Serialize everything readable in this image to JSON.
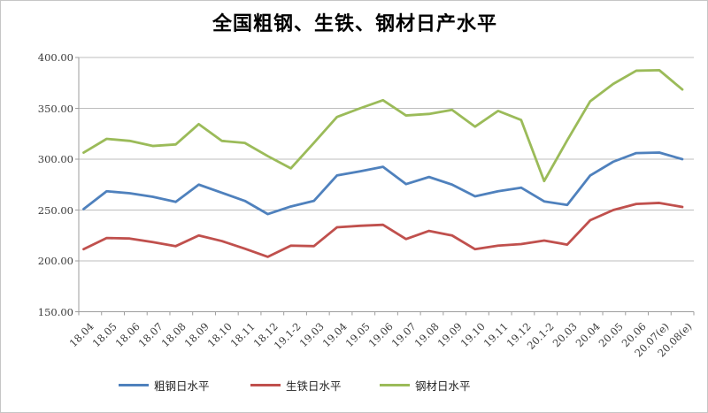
{
  "title": "全国粗钢、生铁、钢材日产水平",
  "colors": {
    "background": "#ffffff",
    "border": "#c6c6c6",
    "gridline": "#bdbdbd",
    "axis": "#9d9d9d",
    "tick_text": "#3a3a3a",
    "crude_steel": "#4f81bd",
    "pig_iron": "#c0504d",
    "steel_products": "#9bbb59"
  },
  "chart_data": {
    "type": "line",
    "title": "全国粗钢、生铁、钢材日产水平",
    "categories": [
      "18.04",
      "18.05",
      "18.06",
      "18.07",
      "18.08",
      "18.09",
      "18.10",
      "18.11",
      "18.12",
      "19.1-2",
      "19.03",
      "19.04",
      "19.05",
      "19.06",
      "19.07",
      "19.08",
      "19.09",
      "19.10",
      "19.11",
      "19.12",
      "20.1-2",
      "20.03",
      "20.04",
      "20.05",
      "20.06",
      "20.07(e)",
      "20.08(e)"
    ],
    "series": [
      {
        "id": "crude-steel-daily",
        "name": "粗钢日水平",
        "color": "#4f81bd",
        "values": [
          251,
          268.5,
          266.5,
          263,
          258,
          275,
          267,
          259,
          246,
          253.5,
          259,
          284,
          288,
          292.5,
          275.5,
          282.5,
          275,
          263.5,
          268.5,
          272,
          258.5,
          255,
          284,
          297.5,
          306,
          306.5,
          300
        ]
      },
      {
        "id": "pig-iron-daily",
        "name": "生铁日水平",
        "color": "#c0504d",
        "values": [
          211.5,
          222.5,
          222,
          218.5,
          214.5,
          225,
          219.5,
          212,
          204,
          215,
          214.5,
          233,
          234.5,
          235.5,
          221.5,
          229.5,
          225,
          211.5,
          215,
          216.5,
          220,
          216,
          240,
          250,
          256,
          257,
          253
        ]
      },
      {
        "id": "steel-products-daily",
        "name": "钢材日水平",
        "color": "#9bbb59",
        "values": [
          306.5,
          320,
          318,
          313,
          314.5,
          334.5,
          318,
          316,
          303,
          291,
          316,
          341.5,
          350,
          358,
          343,
          344.5,
          348.5,
          332,
          347.5,
          338.5,
          278.5,
          318.5,
          357,
          374,
          387,
          387.5,
          368.5
        ]
      }
    ],
    "ylim": [
      150,
      400
    ],
    "ytick_step": 50,
    "ytick_labels": [
      "150.00",
      "200.00",
      "250.00",
      "300.00",
      "350.00",
      "400.00"
    ],
    "xlabel": "",
    "ylabel": "",
    "grid": "horizontal",
    "legend_position": "bottom"
  }
}
